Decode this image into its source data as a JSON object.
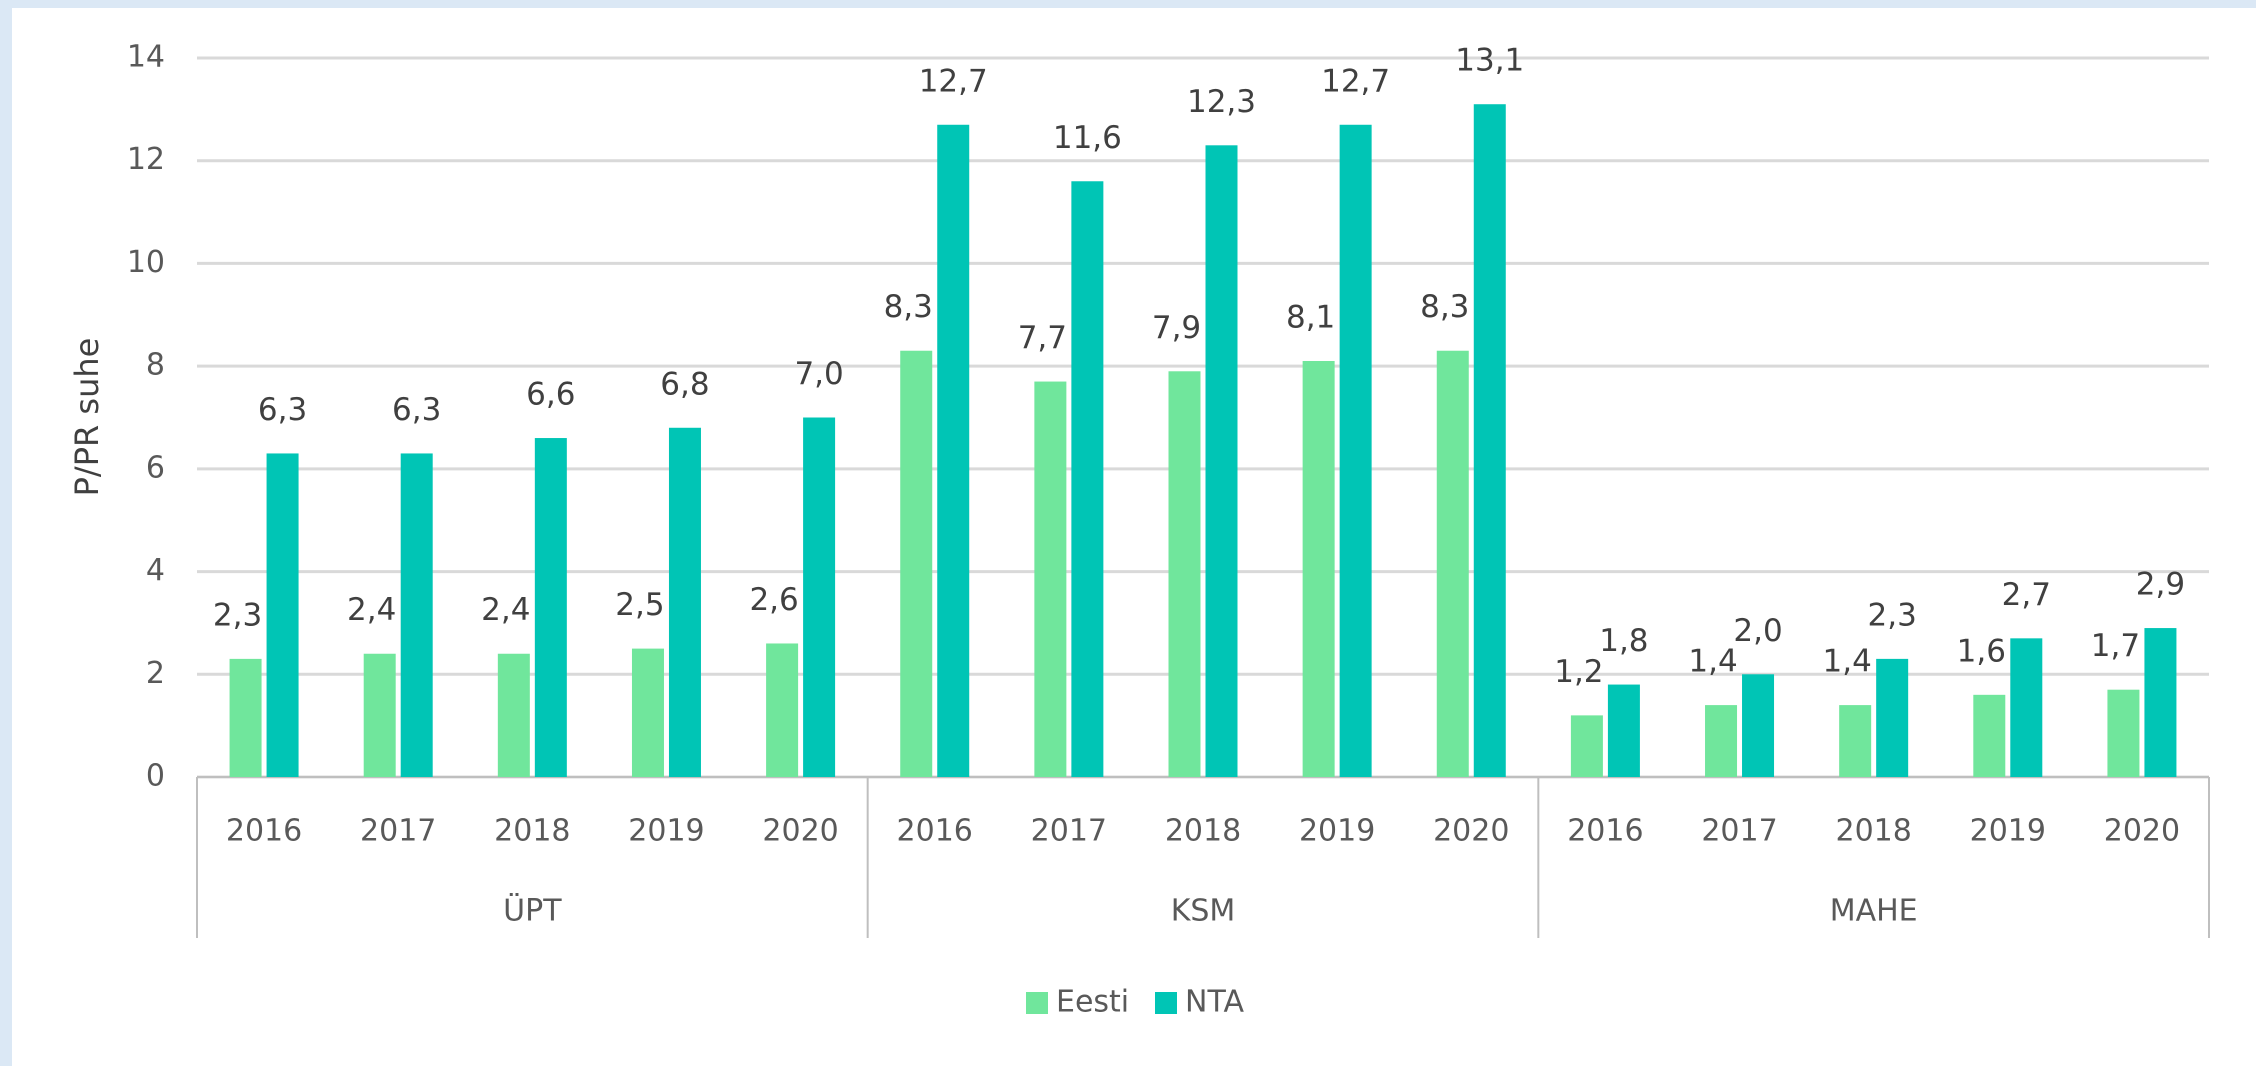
{
  "chart_data": {
    "type": "bar",
    "y_label": "P/PR suhe",
    "categories": [
      "2016",
      "2017",
      "2018",
      "2019",
      "2020",
      "2016",
      "2017",
      "2018",
      "2019",
      "2020",
      "2016",
      "2017",
      "2018",
      "2019",
      "2020"
    ],
    "groups": [
      "ÜPT",
      "KSM",
      "MAHE"
    ],
    "series": [
      {
        "name": "Eesti",
        "color": "#70e69c",
        "values": [
          2.3,
          2.4,
          2.4,
          2.5,
          2.6,
          8.3,
          7.7,
          7.9,
          8.1,
          8.3,
          1.2,
          1.4,
          1.4,
          1.6,
          1.7
        ],
        "value_labels": [
          "2,3",
          "2,4",
          "2,4",
          "2,5",
          "2,6",
          "8,3",
          "7,7",
          "7,9",
          "8,1",
          "8,3",
          "1,2",
          "1,4",
          "1,4",
          "1,6",
          "1,7"
        ]
      },
      {
        "name": "NTA",
        "color": "#00c5b5",
        "values": [
          6.3,
          6.3,
          6.6,
          6.8,
          7.0,
          12.7,
          11.6,
          12.3,
          12.7,
          13.1,
          1.8,
          2.0,
          2.3,
          2.7,
          2.9
        ],
        "value_labels": [
          "6,3",
          "6,3",
          "6,6",
          "6,8",
          "7,0",
          "12,7",
          "11,6",
          "12,3",
          "12,7",
          "13,1",
          "1,8",
          "2,0",
          "2,3",
          "2,7",
          "2,9"
        ]
      }
    ],
    "ylim": [
      0,
      14
    ],
    "yticks": [
      0,
      2,
      4,
      6,
      8,
      10,
      12,
      14
    ],
    "grid": true,
    "legend": "bottom"
  }
}
